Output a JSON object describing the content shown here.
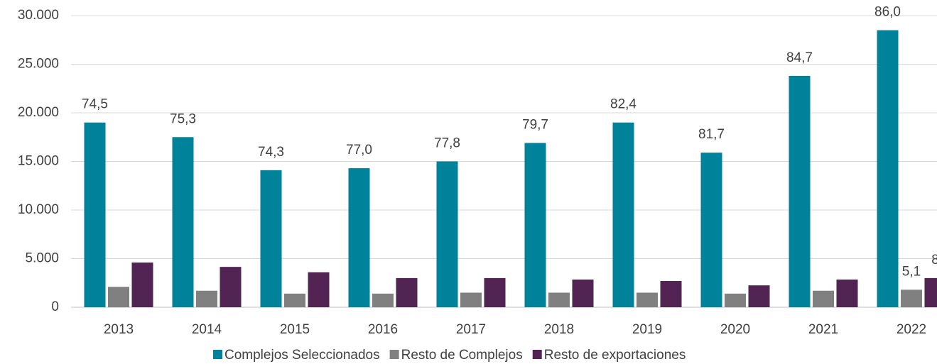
{
  "chart_data": {
    "type": "bar",
    "categories": [
      "2013",
      "2014",
      "2015",
      "2016",
      "2017",
      "2018",
      "2019",
      "2020",
      "2021",
      "2022"
    ],
    "series": [
      {
        "name": "Complejos Seleccionados",
        "color": "#00829b",
        "values": [
          19000,
          17500,
          14100,
          14300,
          15000,
          16900,
          19000,
          15900,
          23800,
          28500
        ],
        "labels": [
          "74,5",
          "75,3",
          "74,3",
          "77,0",
          "77,8",
          "79,7",
          "82,4",
          "81,7",
          "84,7",
          "86,0"
        ]
      },
      {
        "name": "Resto de Complejos",
        "color": "#808080",
        "values": [
          2100,
          1700,
          1400,
          1400,
          1500,
          1500,
          1500,
          1400,
          1700,
          1800
        ],
        "labels": [
          null,
          null,
          null,
          null,
          null,
          null,
          null,
          null,
          null,
          "5,1"
        ]
      },
      {
        "name": "Resto de exportaciones",
        "color": "#512453",
        "values": [
          4600,
          4150,
          3600,
          3000,
          3000,
          2850,
          2700,
          2250,
          2850,
          3000
        ],
        "labels": [
          null,
          null,
          null,
          null,
          null,
          null,
          null,
          null,
          null,
          "8"
        ]
      }
    ],
    "ylim": [
      0,
      30000
    ],
    "yticks": [
      0,
      {
        "value": 5000,
        "label": "5.000"
      },
      {
        "value": 10000,
        "label": "10.000"
      },
      {
        "value": 15000,
        "label": "15.000"
      },
      {
        "value": 20000,
        "label": "20.000"
      },
      {
        "value": 25000,
        "label": "25.000"
      },
      {
        "value": 30000,
        "label": "30.000"
      }
    ],
    "grid": true,
    "legend": "bottom"
  }
}
